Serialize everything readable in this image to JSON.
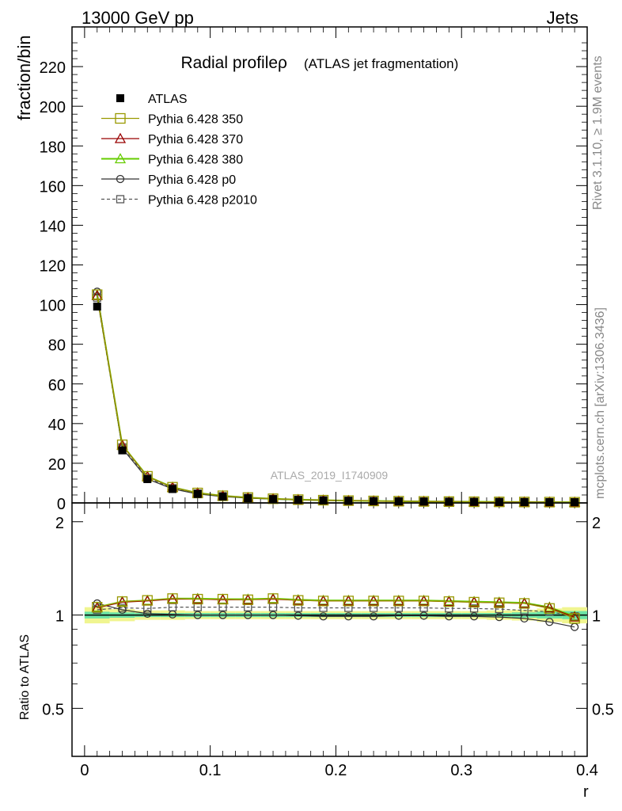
{
  "header": {
    "energy": "13000 GeV pp",
    "category": "Jets"
  },
  "side": {
    "rivet": "Rivet 3.1.10, ≥ 1.9M events",
    "source": "mcplots.cern.ch [arXiv:1306.3436]"
  },
  "colors": {
    "atlas": "#000000",
    "p350": "#999900",
    "p370": "#990000",
    "p380": "#66cc00",
    "p0": "#333333",
    "p2010": "#555555",
    "band_inner": "#6be3a6",
    "band_outer": "#f0f590"
  },
  "chart_data": [
    {
      "type": "line",
      "title": "Radial profileρ",
      "subtitle": "(ATLAS jet fragmentation)",
      "watermark": "ATLAS_2019_I1740909",
      "xlabel": "",
      "ylabel": "fraction/bin",
      "xlim": [
        -0.01,
        0.4
      ],
      "ylim": [
        0,
        240
      ],
      "yticks": [
        0,
        20,
        40,
        60,
        80,
        100,
        120,
        140,
        160,
        180,
        200,
        220
      ],
      "ytick_labels": [
        "0",
        "20",
        "40",
        "60",
        "80",
        "100",
        "120",
        "140",
        "160",
        "180",
        "200",
        "220"
      ],
      "legend_position": "top-left",
      "x": [
        0.01,
        0.03,
        0.05,
        0.07,
        0.09,
        0.11,
        0.13,
        0.15,
        0.17,
        0.19,
        0.21,
        0.23,
        0.25,
        0.27,
        0.29,
        0.31,
        0.33,
        0.35,
        0.37,
        0.39
      ],
      "series": [
        {
          "name": "ATLAS",
          "key": "atlas",
          "marker": "filled-square",
          "values": [
            99.0,
            26.5,
            12.0,
            7.0,
            4.5,
            3.2,
            2.4,
            1.9,
            1.5,
            1.25,
            1.05,
            0.9,
            0.78,
            0.68,
            0.6,
            0.53,
            0.47,
            0.42,
            0.38,
            0.35
          ]
        },
        {
          "name": "Pythia 6.428 350",
          "key": "p350",
          "marker": "open-square",
          "values": [
            105.0,
            29.3,
            13.4,
            7.9,
            5.0,
            3.6,
            2.7,
            2.1,
            1.65,
            1.38,
            1.16,
            0.99,
            0.86,
            0.75,
            0.66,
            0.58,
            0.52,
            0.46,
            0.4,
            0.34
          ]
        },
        {
          "name": "Pythia 6.428 370",
          "key": "p370",
          "marker": "open-triangle",
          "values": [
            104.5,
            29.1,
            13.3,
            7.85,
            5.0,
            3.58,
            2.68,
            2.1,
            1.65,
            1.37,
            1.16,
            0.99,
            0.86,
            0.75,
            0.66,
            0.58,
            0.52,
            0.46,
            0.4,
            0.34
          ]
        },
        {
          "name": "Pythia 6.428 380",
          "key": "p380",
          "marker": "open-triangle",
          "values": [
            104.8,
            29.2,
            13.4,
            7.9,
            5.02,
            3.6,
            2.7,
            2.12,
            1.66,
            1.38,
            1.16,
            0.99,
            0.86,
            0.75,
            0.66,
            0.58,
            0.52,
            0.46,
            0.4,
            0.34
          ]
        },
        {
          "name": "Pythia 6.428 p0",
          "key": "p0",
          "marker": "open-circle",
          "values": [
            106.5,
            27.5,
            12.1,
            7.05,
            4.5,
            3.2,
            2.42,
            1.9,
            1.49,
            1.23,
            1.03,
            0.89,
            0.77,
            0.67,
            0.59,
            0.52,
            0.46,
            0.41,
            0.36,
            0.32
          ]
        },
        {
          "name": "Pythia 6.428 p2010",
          "key": "p2010",
          "marker": "open-square-dashed",
          "values": [
            103.5,
            28.0,
            12.6,
            7.4,
            4.75,
            3.38,
            2.54,
            2.0,
            1.57,
            1.31,
            1.1,
            0.94,
            0.82,
            0.71,
            0.62,
            0.55,
            0.49,
            0.44,
            0.39,
            0.34
          ]
        }
      ]
    },
    {
      "type": "line",
      "xlabel": "r",
      "ylabel": "Ratio to ATLAS",
      "xlim": [
        -0.01,
        0.4
      ],
      "ylim": [
        0.35,
        2.3
      ],
      "xticks": [
        0,
        0.1,
        0.2,
        0.3,
        0.4
      ],
      "xtick_labels": [
        "0",
        "0.1",
        "0.2",
        "0.3",
        "0.4"
      ],
      "yticks": [
        0.5,
        1,
        2
      ],
      "ytick_labels": [
        "0.5",
        "1",
        "2"
      ],
      "x": [
        0.01,
        0.03,
        0.05,
        0.07,
        0.09,
        0.11,
        0.13,
        0.15,
        0.17,
        0.19,
        0.21,
        0.23,
        0.25,
        0.27,
        0.29,
        0.31,
        0.33,
        0.35,
        0.37,
        0.39
      ],
      "band_inner": [
        0.025,
        0.02,
        0.015,
        0.015,
        0.015,
        0.015,
        0.015,
        0.015,
        0.015,
        0.015,
        0.015,
        0.015,
        0.015,
        0.015,
        0.015,
        0.015,
        0.015,
        0.02,
        0.025,
        0.03
      ],
      "band_outer": [
        0.06,
        0.045,
        0.035,
        0.035,
        0.03,
        0.03,
        0.03,
        0.03,
        0.03,
        0.03,
        0.03,
        0.03,
        0.03,
        0.03,
        0.03,
        0.03,
        0.035,
        0.04,
        0.05,
        0.06
      ],
      "series": [
        {
          "name": "Pythia 6.428 350",
          "key": "p350",
          "marker": "open-square",
          "values": [
            1.06,
            1.105,
            1.115,
            1.13,
            1.125,
            1.125,
            1.12,
            1.13,
            1.115,
            1.11,
            1.11,
            1.11,
            1.11,
            1.11,
            1.105,
            1.1,
            1.095,
            1.09,
            1.05,
            0.975
          ]
        },
        {
          "name": "Pythia 6.428 370",
          "key": "p370",
          "marker": "open-triangle",
          "values": [
            1.055,
            1.1,
            1.11,
            1.125,
            1.125,
            1.12,
            1.12,
            1.125,
            1.115,
            1.11,
            1.11,
            1.11,
            1.11,
            1.11,
            1.105,
            1.1,
            1.095,
            1.09,
            1.055,
            0.985
          ]
        },
        {
          "name": "Pythia 6.428 380",
          "key": "p380",
          "marker": "open-triangle",
          "values": [
            1.06,
            1.105,
            1.115,
            1.13,
            1.13,
            1.125,
            1.125,
            1.13,
            1.12,
            1.115,
            1.115,
            1.115,
            1.115,
            1.115,
            1.11,
            1.105,
            1.1,
            1.095,
            1.06,
            0.99
          ]
        },
        {
          "name": "Pythia 6.428 p0",
          "key": "p0",
          "marker": "open-circle",
          "values": [
            1.09,
            1.04,
            1.01,
            1.005,
            1.0,
            1.0,
            1.0,
            1.0,
            0.995,
            0.99,
            0.99,
            0.99,
            0.995,
            0.995,
            0.99,
            0.99,
            0.985,
            0.975,
            0.95,
            0.915
          ]
        },
        {
          "name": "Pythia 6.428 p2010",
          "key": "p2010",
          "marker": "open-square-dashed",
          "values": [
            1.04,
            1.055,
            1.05,
            1.06,
            1.06,
            1.06,
            1.06,
            1.06,
            1.055,
            1.055,
            1.055,
            1.055,
            1.055,
            1.055,
            1.05,
            1.05,
            1.045,
            1.035,
            1.025,
            0.99
          ]
        }
      ]
    }
  ]
}
